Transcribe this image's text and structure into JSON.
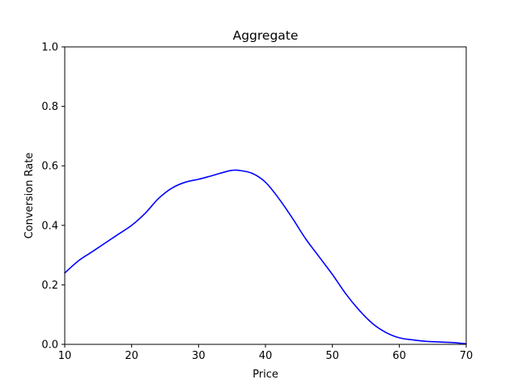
{
  "chart_data": {
    "type": "line",
    "title": "Aggregate",
    "xlabel": "Price",
    "ylabel": "Conversion Rate",
    "xlim": [
      10,
      70
    ],
    "ylim": [
      0.0,
      1.0
    ],
    "xticks": [
      "10",
      "20",
      "30",
      "40",
      "50",
      "60",
      "70"
    ],
    "yticks": [
      "0.0",
      "0.2",
      "0.4",
      "0.6",
      "0.8",
      "1.0"
    ],
    "grid": false,
    "legend": "none",
    "series": [
      {
        "color": "#0000ff",
        "x": [
          10,
          12,
          14,
          16,
          18,
          20,
          22,
          24,
          26,
          28,
          30,
          32,
          34,
          35,
          36,
          38,
          40,
          42,
          44,
          46,
          48,
          50,
          52,
          54,
          56,
          58,
          60,
          62,
          64,
          66,
          68,
          70
        ],
        "y": [
          0.24,
          0.28,
          0.31,
          0.34,
          0.37,
          0.4,
          0.44,
          0.49,
          0.525,
          0.545,
          0.555,
          0.567,
          0.58,
          0.585,
          0.585,
          0.575,
          0.545,
          0.49,
          0.425,
          0.355,
          0.295,
          0.235,
          0.17,
          0.115,
          0.07,
          0.04,
          0.022,
          0.015,
          0.01,
          0.008,
          0.006,
          0.002
        ]
      }
    ]
  }
}
